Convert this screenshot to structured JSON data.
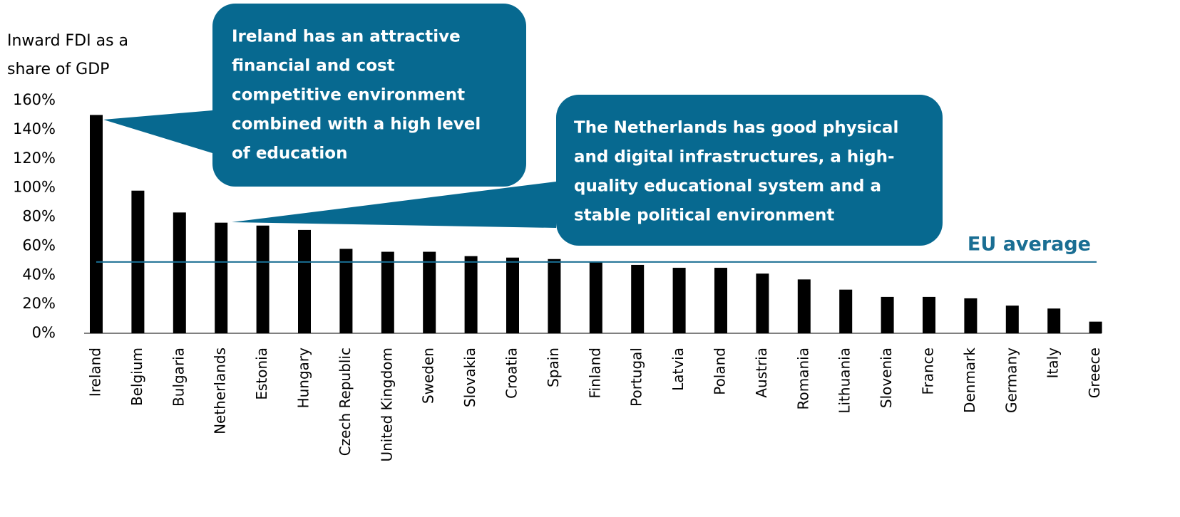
{
  "chart_data": {
    "type": "bar",
    "y_label": [
      "Inward FDI as a",
      "share of GDP"
    ],
    "categories": [
      "Ireland",
      "Belgium",
      "Bulgaria",
      "Netherlands",
      "Estonia",
      "Hungary",
      "Czech Republic",
      "United Kingdom",
      "Sweden",
      "Slovakia",
      "Croatia",
      "Spain",
      "Finland",
      "Portugal",
      "Latvia",
      "Poland",
      "Austria",
      "Romania",
      "Lithuania",
      "Slovenia",
      "France",
      "Denmark",
      "Germany",
      "Italy",
      "Greece"
    ],
    "values": [
      150,
      98,
      83,
      76,
      74,
      71,
      58,
      56,
      56,
      53,
      52,
      51,
      49,
      47,
      45,
      45,
      41,
      37,
      30,
      25,
      25,
      24,
      19,
      17,
      8
    ],
    "color": "#000000",
    "ylim": [
      0,
      160
    ],
    "yticks": [
      {
        "value": 0,
        "label": "0%"
      },
      {
        "value": 20,
        "label": "20%"
      },
      {
        "value": 40,
        "label": "40%"
      },
      {
        "value": 60,
        "label": "60%"
      },
      {
        "value": 80,
        "label": "80%"
      },
      {
        "value": 100,
        "label": "100%"
      },
      {
        "value": 120,
        "label": "120%"
      },
      {
        "value": 140,
        "label": "140%"
      },
      {
        "value": 160,
        "label": "160%"
      }
    ],
    "reference_line": {
      "label": "EU average",
      "value": 49,
      "color": "#1a6e93"
    },
    "annotations": [
      {
        "lines": [
          "Ireland has an attractive",
          "financial and cost",
          "competitive environment",
          "combined with a high level",
          "of education"
        ],
        "color": "#076990"
      },
      {
        "lines": [
          "The Netherlands has good physical",
          "and digital infrastructures, a high-",
          "quality educational system and a",
          "stable political environment"
        ],
        "color": "#076990"
      }
    ]
  }
}
